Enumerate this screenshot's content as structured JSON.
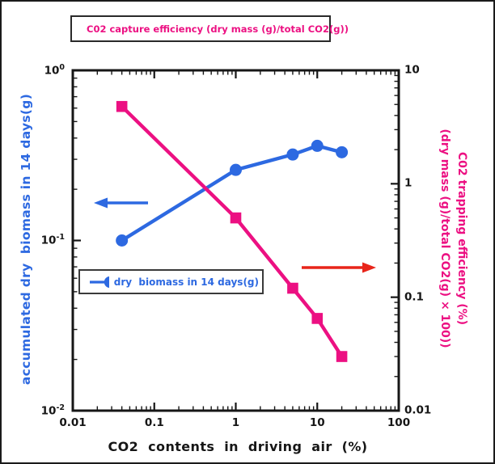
{
  "legends": {
    "capture": {
      "label": "C02 capture efficiency (dry mass (g)/total CO2(g))"
    },
    "biomass": {
      "label": "dry  biomass in 14 days(g)"
    }
  },
  "axes": {
    "x": {
      "title": "CO2 contents in driving air (%)",
      "tick_labels": [
        "0.01",
        "0.1",
        "1",
        "10",
        "100"
      ]
    },
    "y_left": {
      "title": "accumulated dry  biomass in 14 days(g)",
      "base": "10",
      "tick_exponents": [
        "0",
        "-1",
        "-2"
      ]
    },
    "y_right": {
      "title_line1": "C02 trapping efficiency (%)",
      "title_line2": "(dry mass (g)/total CO2(g) × 100))",
      "tick_labels": [
        "10",
        "1",
        "0.1",
        "0.01"
      ]
    }
  },
  "colors": {
    "biomass_blue": "#2d69e1",
    "efficiency_pink": "#ec1082",
    "arrow_red": "#e8251a",
    "axis_black": "#161616",
    "background": "#ffffff"
  },
  "annotations": [
    {
      "name": "left-axis-arrow",
      "direction": "left",
      "color_key": "biomass_blue"
    },
    {
      "name": "right-axis-arrow",
      "direction": "right",
      "color_key": "arrow_red"
    }
  ],
  "chart_data": {
    "type": "line",
    "title": "",
    "x": [
      0.04,
      1,
      5,
      10,
      20
    ],
    "x_axis": {
      "label": "CO2 contents in driving air (%)",
      "scale": "log",
      "range": [
        0.01,
        100
      ],
      "ticks": [
        0.01,
        0.1,
        1,
        10,
        100
      ]
    },
    "y_axes": {
      "left": {
        "label": "accumulated dry biomass in 14 days(g)",
        "scale": "log",
        "range": [
          0.01,
          1
        ],
        "ticks": [
          1,
          0.1,
          0.01
        ]
      },
      "right": {
        "label": "CO2 trapping efficiency (%) (dry mass (g)/total CO2(g) × 100))",
        "scale": "log",
        "range": [
          0.01,
          10
        ],
        "ticks": [
          10,
          1,
          0.1,
          0.01
        ]
      }
    },
    "series": [
      {
        "name": "dry biomass in 14 days(g)",
        "axis": "left",
        "marker": "circle",
        "color": "#2d69e1",
        "values": [
          0.1,
          0.26,
          0.32,
          0.36,
          0.33
        ]
      },
      {
        "name": "C02 capture efficiency (dry mass (g)/total CO2(g))",
        "axis": "right",
        "marker": "square",
        "color": "#ec1082",
        "values": [
          4.8,
          0.5,
          0.12,
          0.065,
          0.03
        ]
      }
    ],
    "legend_position": {
      "capture": "top-outside",
      "biomass": "inside-left"
    },
    "grid": false
  }
}
